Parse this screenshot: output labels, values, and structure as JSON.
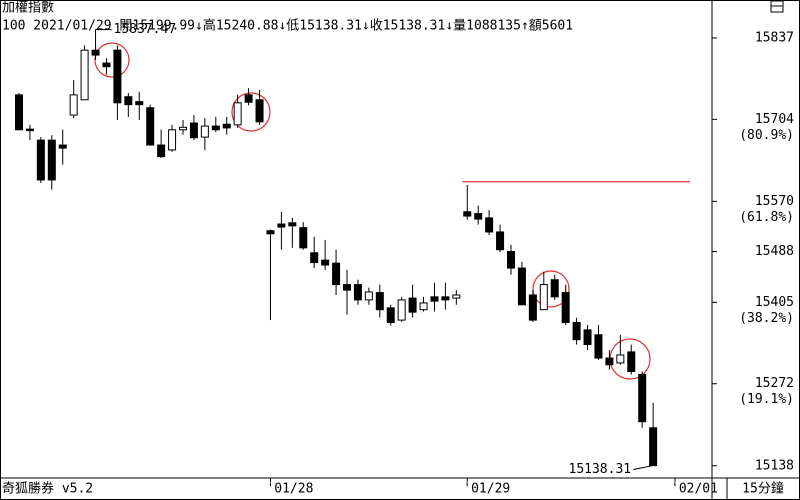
{
  "chart_data": {
    "type": "candlestick",
    "title": "加權指數",
    "info": "100 2021/01/29 開15199.99↓高15240.88↓低15138.31↓收15138.31↓量1088135↑額5601",
    "categories": [
      null,
      null,
      null,
      null,
      null,
      null,
      null,
      null,
      null,
      null,
      null,
      null,
      null,
      null,
      null,
      null,
      null,
      null,
      null,
      null,
      null,
      null,
      null,
      "'01/28",
      null,
      null,
      null,
      null,
      null,
      null,
      null,
      null,
      null,
      null,
      null,
      null,
      null,
      null,
      null,
      null,
      null,
      "'01/29",
      null,
      null,
      null,
      null,
      null,
      null,
      null,
      null,
      null,
      null,
      null,
      null,
      null,
      null,
      null,
      null,
      null,
      null,
      "'02/01"
    ],
    "open": [
      15744,
      15688,
      15670,
      15670,
      15662,
      15711,
      15736,
      15817,
      15796,
      15817,
      15741,
      15733,
      15723,
      15662,
      15654,
      15687,
      15698,
      15675,
      15693,
      15696,
      15695,
      15744,
      15736,
      15522,
      15533,
      15535,
      15527,
      15486,
      15474,
      15469,
      15434,
      15434,
      15409,
      15421,
      15396,
      15376,
      15412,
      15393,
      15414,
      15414,
      15412,
      15553,
      15550,
      15543,
      15520,
      15488,
      15461,
      15417,
      15393,
      15442,
      15421,
      15372,
      15360,
      15352,
      15314,
      15306,
      15324,
      15287,
      15199.99,
      null,
      null
    ],
    "high": [
      15747,
      15695,
      15675,
      15678,
      15687,
      15768,
      15825,
      15837.47,
      15804,
      15825,
      15747,
      15749,
      15728,
      15687,
      15695,
      15703,
      15711,
      15706,
      15708,
      15708,
      15744,
      15755,
      15752,
      15524,
      15553,
      15543,
      15536,
      15512,
      15507,
      15491,
      15458,
      15442,
      15429,
      15434,
      15401,
      15414,
      15434,
      15414,
      15437,
      15437,
      15425,
      15597,
      15563,
      15556,
      15532,
      15499,
      15471,
      15425,
      15455,
      15450,
      15434,
      15380,
      15368,
      15368,
      15327,
      15352,
      15336,
      15292,
      15240.88,
      null,
      null
    ],
    "low": [
      15686,
      15670,
      15600,
      15589,
      15630,
      15706,
      15736,
      15801,
      15777,
      15703,
      15708,
      15703,
      15662,
      15641,
      15651,
      15679,
      15670,
      15654,
      15683,
      15679,
      15690,
      15727,
      15695,
      15376,
      15491,
      15494,
      15491,
      15461,
      15458,
      15417,
      15385,
      15401,
      15401,
      15380,
      15367,
      15373,
      15380,
      15390,
      15390,
      15393,
      15401,
      15540,
      15532,
      15515,
      15487,
      15450,
      15401,
      15373,
      15393,
      15409,
      15368,
      15336,
      15327,
      15311,
      15295,
      15303,
      15287,
      15200,
      15138.31,
      null,
      null
    ],
    "close": [
      15687,
      15686,
      15605,
      15605,
      15657,
      15744,
      15817,
      15809,
      15790,
      15731,
      15728,
      15728,
      15662,
      15643,
      15687,
      15691,
      15674,
      15693,
      15687,
      15690,
      15731,
      15732,
      15700,
      15517,
      15528,
      15530,
      15494,
      15470,
      15466,
      15434,
      15425,
      15409,
      15422,
      15393,
      15372,
      15409,
      15389,
      15404,
      15407,
      15409,
      15417,
      15546,
      15541,
      15520,
      15491,
      15461,
      15401,
      15376,
      15434,
      15414,
      15372,
      15344,
      15336,
      15314,
      15303,
      15319,
      15292,
      15210,
      15138.31,
      null,
      null
    ],
    "up_color": "#ffffff",
    "down_color": "#000000",
    "ylim": [
      15118,
      15899
    ],
    "yticks": [
      15837,
      15704,
      15570,
      15488,
      15405,
      15272,
      15138
    ],
    "fib_labels": [
      {
        "value": 15704,
        "label": "(80.9%)"
      },
      {
        "value": 15570,
        "label": "(61.8%)"
      },
      {
        "value": 15405,
        "label": "(38.2%)"
      },
      {
        "value": 15272,
        "label": "(19.1%)"
      }
    ],
    "hline": {
      "value": 15602,
      "color": "#e03030"
    },
    "annotations": [
      "15837.47",
      "15138.31"
    ],
    "period": "15分鐘",
    "brand": "奇狐勝券 v5.2"
  }
}
